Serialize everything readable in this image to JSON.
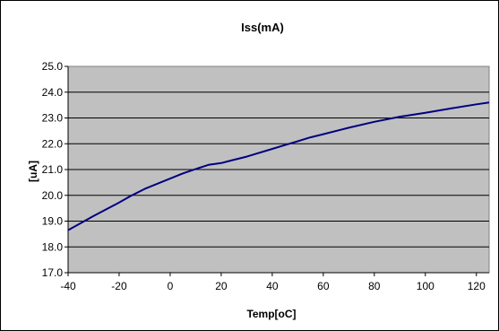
{
  "chart_data": {
    "type": "line",
    "title": "Iss(mA)",
    "xlabel": "Temp[oC]",
    "ylabel": "[uA]",
    "xlim": [
      -40,
      125
    ],
    "ylim": [
      17.0,
      25.0
    ],
    "x_ticks": [
      "-40",
      "-20",
      "0",
      "20",
      "40",
      "60",
      "80",
      "100",
      "120"
    ],
    "x_tick_values": [
      -40,
      -20,
      0,
      20,
      40,
      60,
      80,
      100,
      120
    ],
    "y_ticks": [
      "17.0",
      "18.0",
      "19.0",
      "20.0",
      "21.0",
      "22.0",
      "23.0",
      "24.0",
      "25.0"
    ],
    "y_tick_values": [
      17,
      18,
      19,
      20,
      21,
      22,
      23,
      24,
      25
    ],
    "grid": "horizontal",
    "legend": "none",
    "series": [
      {
        "color": "#000080",
        "x": [
          -40,
          -30,
          -20,
          -15,
          -10,
          0,
          5,
          10,
          15,
          20,
          25,
          30,
          40,
          45,
          50,
          55,
          60,
          70,
          80,
          90,
          100,
          110,
          120,
          125
        ],
        "y": [
          18.65,
          19.2,
          19.72,
          20.0,
          20.25,
          20.65,
          20.85,
          21.02,
          21.18,
          21.25,
          21.38,
          21.5,
          21.8,
          21.95,
          22.1,
          22.25,
          22.37,
          22.62,
          22.85,
          23.05,
          23.2,
          23.37,
          23.53,
          23.6
        ]
      }
    ]
  }
}
